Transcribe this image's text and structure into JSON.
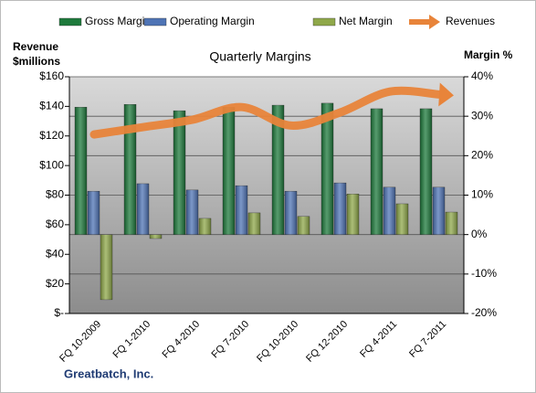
{
  "chart_data": {
    "type": "bar",
    "title": "Quarterly Margins",
    "y_label": [
      "Revenue",
      "$millions"
    ],
    "y2_label": "Margin %",
    "footer": "Greatbatch, Inc.",
    "categories": [
      "FQ 10-2009",
      "FQ 1-2010",
      "FQ 4-2010",
      "FQ 7-2010",
      "FQ 10-2010",
      "FQ 12-2010",
      "FQ 4-2011",
      "FQ 7-2011"
    ],
    "series": [
      {
        "name": "Gross Margin",
        "color": "#1e7a3c",
        "axis": "y2",
        "values": [
          32.3,
          33.0,
          31.4,
          32.3,
          32.8,
          33.3,
          31.9,
          31.9
        ]
      },
      {
        "name": "Operating Margin",
        "color": "#4f74b5",
        "axis": "y2",
        "values": [
          11.0,
          12.9,
          11.3,
          12.4,
          11.0,
          13.1,
          12.0,
          12.0
        ]
      },
      {
        "name": "Net Margin",
        "color": "#8fa84a",
        "axis": "y2",
        "values": [
          -16.5,
          -1.0,
          4.1,
          5.5,
          4.6,
          10.3,
          7.8,
          5.7
        ]
      },
      {
        "name": "Revenues",
        "color": "#e8843a",
        "axis": "y",
        "type": "line",
        "values": [
          121,
          126,
          131,
          139.5,
          127,
          136,
          150,
          148
        ]
      }
    ],
    "ylim": [
      0,
      160
    ],
    "yticks": [
      {
        "value": 0,
        "label": "$-"
      },
      {
        "value": 20,
        "label": "$20"
      },
      {
        "value": 40,
        "label": "$40"
      },
      {
        "value": 60,
        "label": "$60"
      },
      {
        "value": 80,
        "label": "$80"
      },
      {
        "value": 100,
        "label": "$100"
      },
      {
        "value": 120,
        "label": "$120"
      },
      {
        "value": 140,
        "label": "$140"
      },
      {
        "value": 160,
        "label": "$160"
      }
    ],
    "y2lim": [
      -20,
      40
    ],
    "y2ticks": [
      {
        "value": -20,
        "label": "-20%"
      },
      {
        "value": -10,
        "label": "-10%"
      },
      {
        "value": 0,
        "label": "0%"
      },
      {
        "value": 10,
        "label": "10%"
      },
      {
        "value": 20,
        "label": "20%"
      },
      {
        "value": 30,
        "label": "30%"
      },
      {
        "value": 40,
        "label": "40%"
      }
    ],
    "grid": true
  }
}
